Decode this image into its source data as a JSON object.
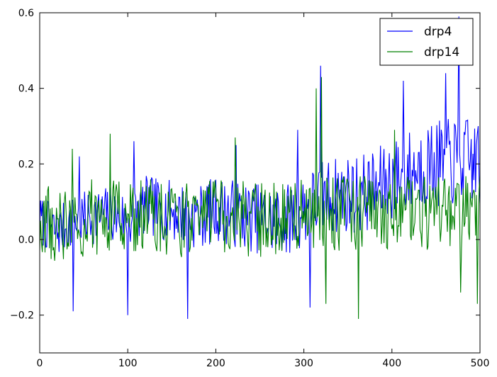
{
  "chart_data": {
    "type": "line",
    "title": "",
    "xlabel": "",
    "ylabel": "",
    "xlim": [
      0,
      500
    ],
    "ylim": [
      -0.3,
      0.6
    ],
    "xticks": [
      0,
      100,
      200,
      300,
      400,
      500
    ],
    "xtick_labels": [
      "0",
      "100",
      "200",
      "300",
      "400",
      "500"
    ],
    "yticks": [
      -0.2,
      0.0,
      0.2,
      0.4,
      0.6
    ],
    "ytick_labels": [
      "−0.2",
      "0.0",
      "0.2",
      "0.4",
      "0.6"
    ],
    "grid": false,
    "legend": {
      "placement": "top-right",
      "entries": [
        "drp4",
        "drp14"
      ]
    },
    "series": [
      {
        "name": "drp4",
        "color": "#0000ff",
        "x": [
          0,
          20,
          40,
          60,
          80,
          100,
          120,
          140,
          160,
          180,
          200,
          220,
          240,
          260,
          280,
          300,
          320,
          340,
          360,
          380,
          400,
          420,
          440,
          460,
          480,
          500
        ],
        "y": [
          0.05,
          0.02,
          0.05,
          0.06,
          0.07,
          0.05,
          0.09,
          0.08,
          0.07,
          0.06,
          0.08,
          0.07,
          0.06,
          0.05,
          0.05,
          0.08,
          0.11,
          0.12,
          0.12,
          0.13,
          0.16,
          0.18,
          0.2,
          0.2,
          0.21,
          0.2
        ],
        "peaks": [
          [
            38,
            -0.19
          ],
          [
            45,
            0.22
          ],
          [
            100,
            -0.2
          ],
          [
            107,
            0.26
          ],
          [
            168,
            -0.21
          ],
          [
            223,
            0.25
          ],
          [
            293,
            0.29
          ],
          [
            307,
            -0.18
          ],
          [
            319,
            0.46
          ],
          [
            413,
            0.42
          ],
          [
            461,
            0.44
          ],
          [
            476,
            0.59
          ],
          [
            498,
            0.3
          ]
        ],
        "noise": 0.11
      },
      {
        "name": "drp14",
        "color": "#008000",
        "x": [
          0,
          20,
          40,
          60,
          80,
          100,
          120,
          140,
          160,
          180,
          200,
          220,
          240,
          260,
          280,
          300,
          320,
          340,
          360,
          380,
          400,
          420,
          440,
          460,
          480,
          500
        ],
        "y": [
          0.05,
          0.04,
          0.05,
          0.06,
          0.06,
          0.05,
          0.06,
          0.06,
          0.05,
          0.06,
          0.06,
          0.06,
          0.05,
          0.05,
          0.05,
          0.06,
          0.07,
          0.07,
          0.07,
          0.07,
          0.07,
          0.07,
          0.07,
          0.07,
          0.07,
          0.07
        ],
        "peaks": [
          [
            37,
            0.24
          ],
          [
            80,
            0.28
          ],
          [
            222,
            0.27
          ],
          [
            314,
            0.4
          ],
          [
            320,
            0.43
          ],
          [
            325,
            -0.17
          ],
          [
            362,
            -0.21
          ],
          [
            403,
            0.29
          ],
          [
            478,
            -0.14
          ],
          [
            497,
            -0.17
          ]
        ],
        "noise": 0.1
      }
    ]
  }
}
